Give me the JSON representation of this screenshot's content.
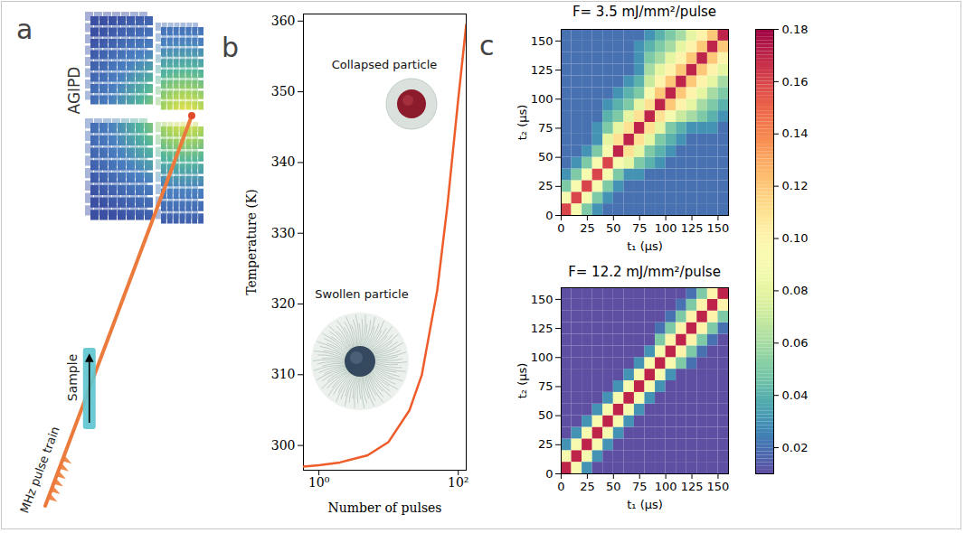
{
  "chart_data": [
    {
      "panel": "a",
      "type": "diagram",
      "labels": {
        "detector": "AGIPD",
        "sample": "Sample",
        "beam": "MHz pulse train"
      }
    },
    {
      "panel": "b",
      "type": "line",
      "x_label": "Number of pulses",
      "y_label": "Temperature (K)",
      "log": "x",
      "xlim": [
        0.6,
        130
      ],
      "xticks": [
        {
          "value": 1,
          "label": "10⁰"
        },
        {
          "value": 100,
          "label": "10²"
        }
      ],
      "ylim": [
        296.5,
        361
      ],
      "yticks": [
        300,
        310,
        320,
        330,
        340,
        350,
        360
      ],
      "x": [
        0.6,
        1,
        2,
        5,
        10,
        20,
        30,
        50,
        70,
        100,
        130
      ],
      "values": [
        297.0,
        297.2,
        297.6,
        298.6,
        300.5,
        305,
        310,
        322,
        334,
        349,
        359.5
      ],
      "color": "#ee5c2a",
      "annotations": [
        "Swollen particle",
        "Collapsed particle"
      ]
    },
    {
      "panel": "c",
      "type": "heatmap",
      "title": "F= 3.5 mJ/mm²/pulse",
      "x_label": "t₁ (μs)",
      "y_label": "t₂ (μs)",
      "xlim": [
        0,
        160
      ],
      "ylim": [
        0,
        160
      ],
      "xticks": [
        0,
        25,
        50,
        75,
        100,
        125,
        150
      ],
      "yticks": [
        0,
        25,
        50,
        75,
        100,
        125,
        150
      ],
      "x_bins": [
        0,
        10,
        20,
        30,
        40,
        50,
        60,
        70,
        80,
        90,
        100,
        110,
        120,
        130,
        140,
        150,
        160
      ],
      "y_bins": [
        0,
        10,
        20,
        30,
        40,
        50,
        60,
        70,
        80,
        90,
        100,
        110,
        120,
        130,
        140,
        150,
        160
      ],
      "clim": [
        0.01,
        0.18
      ],
      "cticks": [
        0.02,
        0.04,
        0.06,
        0.08,
        {
          "value": 0.1,
          "label": "0.10"
        },
        0.12,
        0.14,
        0.16,
        0.18
      ],
      "cells": [
        [
          0.16,
          0.09,
          0.05,
          0.03,
          0.02,
          0.02,
          0.02,
          0.02,
          0.02,
          0.02,
          0.02,
          0.02,
          0.02,
          0.02,
          0.02,
          0.02
        ],
        [
          0.09,
          0.16,
          0.09,
          0.05,
          0.03,
          0.02,
          0.02,
          0.02,
          0.02,
          0.02,
          0.02,
          0.02,
          0.02,
          0.02,
          0.02,
          0.02
        ],
        [
          0.05,
          0.09,
          0.16,
          0.09,
          0.05,
          0.03,
          0.02,
          0.02,
          0.02,
          0.02,
          0.02,
          0.02,
          0.02,
          0.02,
          0.02,
          0.02
        ],
        [
          0.03,
          0.05,
          0.09,
          0.16,
          0.09,
          0.05,
          0.03,
          0.03,
          0.02,
          0.02,
          0.02,
          0.02,
          0.02,
          0.02,
          0.02,
          0.02
        ],
        [
          0.02,
          0.03,
          0.05,
          0.09,
          0.16,
          0.09,
          0.08,
          0.05,
          0.04,
          0.03,
          0.02,
          0.02,
          0.02,
          0.02,
          0.02,
          0.02
        ],
        [
          0.02,
          0.02,
          0.03,
          0.05,
          0.09,
          0.17,
          0.11,
          0.08,
          0.05,
          0.04,
          0.03,
          0.02,
          0.02,
          0.02,
          0.02,
          0.02
        ],
        [
          0.02,
          0.02,
          0.02,
          0.03,
          0.08,
          0.11,
          0.17,
          0.11,
          0.08,
          0.05,
          0.04,
          0.03,
          0.02,
          0.02,
          0.02,
          0.02
        ],
        [
          0.02,
          0.02,
          0.02,
          0.03,
          0.05,
          0.08,
          0.11,
          0.17,
          0.11,
          0.08,
          0.05,
          0.04,
          0.03,
          0.03,
          0.03,
          0.02
        ],
        [
          0.02,
          0.02,
          0.02,
          0.02,
          0.04,
          0.05,
          0.08,
          0.11,
          0.17,
          0.11,
          0.09,
          0.07,
          0.06,
          0.05,
          0.04,
          0.03
        ],
        [
          0.02,
          0.02,
          0.02,
          0.02,
          0.03,
          0.04,
          0.05,
          0.08,
          0.11,
          0.17,
          0.12,
          0.1,
          0.08,
          0.06,
          0.05,
          0.04
        ],
        [
          0.02,
          0.02,
          0.02,
          0.02,
          0.02,
          0.03,
          0.04,
          0.05,
          0.09,
          0.12,
          0.17,
          0.12,
          0.1,
          0.08,
          0.06,
          0.05
        ],
        [
          0.02,
          0.02,
          0.02,
          0.02,
          0.02,
          0.02,
          0.03,
          0.04,
          0.07,
          0.1,
          0.12,
          0.17,
          0.12,
          0.1,
          0.08,
          0.06
        ],
        [
          0.02,
          0.02,
          0.02,
          0.02,
          0.02,
          0.02,
          0.02,
          0.03,
          0.06,
          0.08,
          0.1,
          0.12,
          0.17,
          0.12,
          0.1,
          0.08
        ],
        [
          0.02,
          0.02,
          0.02,
          0.02,
          0.02,
          0.02,
          0.02,
          0.03,
          0.05,
          0.06,
          0.08,
          0.1,
          0.12,
          0.17,
          0.12,
          0.1
        ],
        [
          0.02,
          0.02,
          0.02,
          0.02,
          0.02,
          0.02,
          0.02,
          0.03,
          0.04,
          0.05,
          0.06,
          0.08,
          0.1,
          0.12,
          0.17,
          0.12
        ],
        [
          0.02,
          0.02,
          0.02,
          0.02,
          0.02,
          0.02,
          0.02,
          0.02,
          0.03,
          0.04,
          0.05,
          0.06,
          0.08,
          0.1,
          0.12,
          0.17
        ]
      ]
    },
    {
      "type": "heatmap",
      "title": "F= 12.2 mJ/mm²/pulse",
      "x_label": "t₁ (μs)",
      "y_label": "t₂ (μs)",
      "xlim": [
        0,
        160
      ],
      "ylim": [
        0,
        160
      ],
      "xticks": [
        0,
        25,
        50,
        75,
        100,
        125,
        150
      ],
      "yticks": [
        0,
        25,
        50,
        75,
        100,
        125,
        150
      ],
      "x_bins": [
        0,
        10,
        20,
        30,
        40,
        50,
        60,
        70,
        80,
        90,
        100,
        110,
        120,
        130,
        140,
        150,
        160
      ],
      "y_bins": [
        0,
        10,
        20,
        30,
        40,
        50,
        60,
        70,
        80,
        90,
        100,
        110,
        120,
        130,
        140,
        150,
        160
      ],
      "cells": [
        [
          0.17,
          0.09,
          0.03,
          0.01,
          0.01,
          0.01,
          0.01,
          0.01,
          0.01,
          0.01,
          0.01,
          0.01,
          0.01,
          0.01,
          0.01,
          0.01
        ],
        [
          0.09,
          0.17,
          0.09,
          0.03,
          0.01,
          0.01,
          0.01,
          0.01,
          0.01,
          0.01,
          0.01,
          0.01,
          0.01,
          0.01,
          0.01,
          0.01
        ],
        [
          0.03,
          0.09,
          0.17,
          0.09,
          0.03,
          0.01,
          0.01,
          0.01,
          0.01,
          0.01,
          0.01,
          0.01,
          0.01,
          0.01,
          0.01,
          0.01
        ],
        [
          0.01,
          0.03,
          0.09,
          0.17,
          0.09,
          0.03,
          0.01,
          0.01,
          0.01,
          0.01,
          0.01,
          0.01,
          0.01,
          0.01,
          0.01,
          0.01
        ],
        [
          0.01,
          0.01,
          0.03,
          0.09,
          0.17,
          0.09,
          0.03,
          0.01,
          0.01,
          0.01,
          0.01,
          0.01,
          0.01,
          0.01,
          0.01,
          0.01
        ],
        [
          0.01,
          0.01,
          0.01,
          0.03,
          0.09,
          0.17,
          0.09,
          0.03,
          0.01,
          0.01,
          0.01,
          0.01,
          0.01,
          0.01,
          0.01,
          0.01
        ],
        [
          0.01,
          0.01,
          0.01,
          0.01,
          0.03,
          0.09,
          0.17,
          0.09,
          0.03,
          0.01,
          0.01,
          0.01,
          0.01,
          0.01,
          0.01,
          0.01
        ],
        [
          0.01,
          0.01,
          0.01,
          0.01,
          0.01,
          0.03,
          0.09,
          0.17,
          0.09,
          0.03,
          0.01,
          0.01,
          0.01,
          0.01,
          0.01,
          0.01
        ],
        [
          0.01,
          0.01,
          0.01,
          0.01,
          0.01,
          0.01,
          0.03,
          0.09,
          0.17,
          0.09,
          0.03,
          0.01,
          0.01,
          0.01,
          0.01,
          0.01
        ],
        [
          0.01,
          0.01,
          0.01,
          0.01,
          0.01,
          0.01,
          0.01,
          0.03,
          0.09,
          0.17,
          0.09,
          0.05,
          0.02,
          0.01,
          0.01,
          0.01
        ],
        [
          0.01,
          0.01,
          0.01,
          0.01,
          0.01,
          0.01,
          0.01,
          0.01,
          0.03,
          0.09,
          0.17,
          0.1,
          0.05,
          0.02,
          0.01,
          0.01
        ],
        [
          0.01,
          0.01,
          0.01,
          0.01,
          0.01,
          0.01,
          0.01,
          0.01,
          0.01,
          0.05,
          0.1,
          0.17,
          0.1,
          0.05,
          0.02,
          0.01
        ],
        [
          0.01,
          0.01,
          0.01,
          0.01,
          0.01,
          0.01,
          0.01,
          0.01,
          0.01,
          0.02,
          0.05,
          0.1,
          0.17,
          0.1,
          0.05,
          0.02
        ],
        [
          0.01,
          0.01,
          0.01,
          0.01,
          0.01,
          0.01,
          0.01,
          0.01,
          0.01,
          0.01,
          0.02,
          0.05,
          0.1,
          0.17,
          0.1,
          0.05
        ],
        [
          0.01,
          0.01,
          0.01,
          0.01,
          0.01,
          0.01,
          0.01,
          0.01,
          0.01,
          0.01,
          0.01,
          0.02,
          0.05,
          0.1,
          0.17,
          0.1
        ],
        [
          0.01,
          0.01,
          0.01,
          0.01,
          0.01,
          0.01,
          0.01,
          0.01,
          0.01,
          0.01,
          0.01,
          0.01,
          0.02,
          0.05,
          0.1,
          0.17
        ]
      ]
    }
  ]
}
